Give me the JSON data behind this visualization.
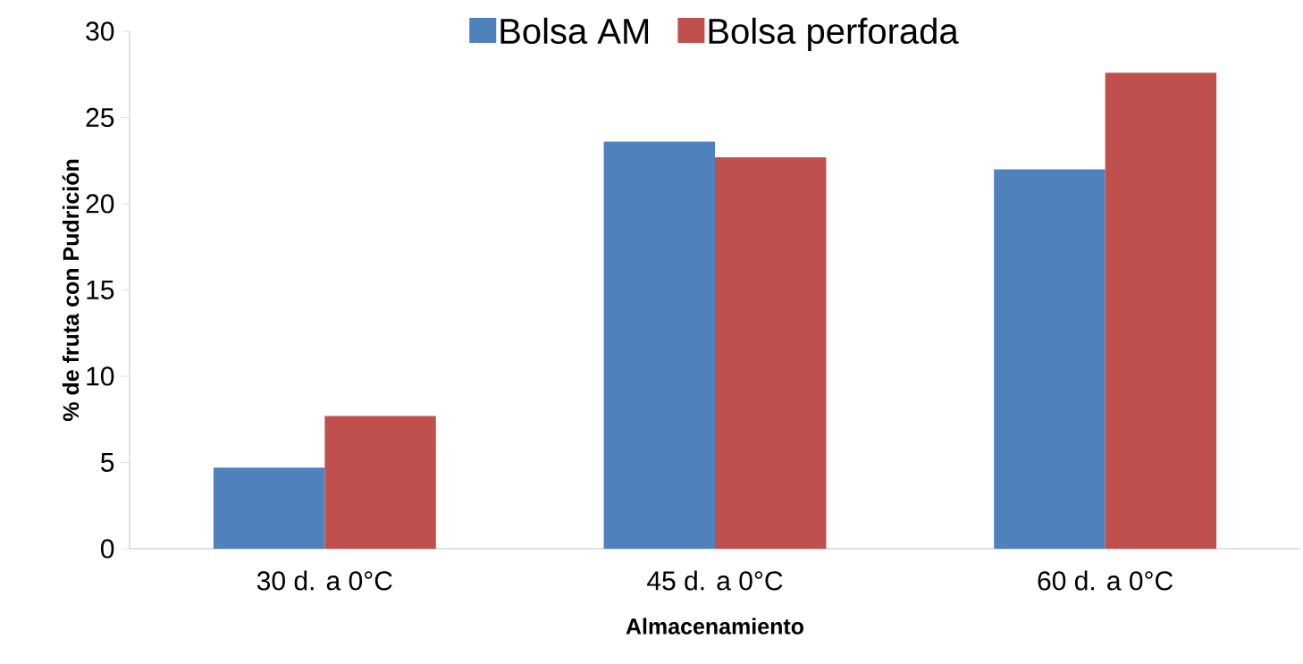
{
  "chart_data": {
    "type": "bar",
    "xlabel": "Almacenamiento",
    "ylabel": "% de fruta con  Pudrición",
    "categories": [
      "30 d. a 0°C",
      "45 d. a 0°C",
      "60 d. a 0°C"
    ],
    "series": [
      {
        "name": "Bolsa AM",
        "color": "#4f81bd",
        "values": [
          4.7,
          23.6,
          22.0
        ]
      },
      {
        "name": "Bolsa perforada",
        "color": "#c0504d",
        "values": [
          7.7,
          22.7,
          27.6
        ]
      }
    ],
    "ylim": [
      0,
      30
    ],
    "yticks": [
      0,
      5,
      10,
      15,
      20,
      25,
      30
    ],
    "legend": "top"
  }
}
